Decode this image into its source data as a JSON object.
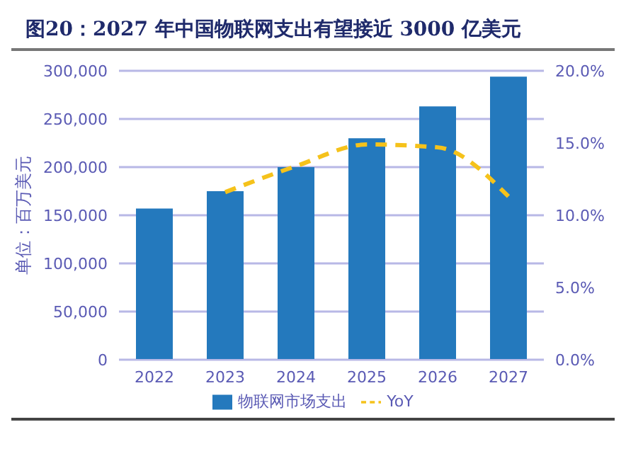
{
  "chart_data": {
    "type": "bar",
    "title": "图20：2027 年中国物联网支出有望接近 3000 亿美元",
    "ylabel": "单位：百万美元",
    "categories": [
      "2022",
      "2023",
      "2024",
      "2025",
      "2026",
      "2027"
    ],
    "series": [
      {
        "name": "物联网市场支出",
        "color": "#2479bd",
        "values": [
          157000,
          175000,
          200000,
          230000,
          263000,
          294000
        ]
      },
      {
        "name": "YoY",
        "type": "line",
        "axis": "y2",
        "color": "#f5c21b",
        "line_style": "dashed",
        "values": [
          null,
          11.6,
          13.4,
          14.9,
          14.7,
          11.3
        ]
      }
    ],
    "ylim": [
      0,
      300000
    ],
    "yticks": [
      {
        "value": 0,
        "label": "0"
      },
      {
        "value": 50000,
        "label": "50,000"
      },
      {
        "value": 100000,
        "label": "100,000"
      },
      {
        "value": 150000,
        "label": "150,000"
      },
      {
        "value": 200000,
        "label": "200,000"
      },
      {
        "value": 250000,
        "label": "250,000"
      },
      {
        "value": 300000,
        "label": "300,000"
      }
    ],
    "y2lim": [
      0,
      20
    ],
    "y2ticks": [
      {
        "value": 0,
        "label": "0.0%"
      },
      {
        "value": 5,
        "label": "5.0%"
      },
      {
        "value": 10,
        "label": "10.0%"
      },
      {
        "value": 15,
        "label": "15.0%"
      },
      {
        "value": 20,
        "label": "20.0%"
      }
    ],
    "grid": "y",
    "legend": "bottom",
    "marker": "none"
  }
}
